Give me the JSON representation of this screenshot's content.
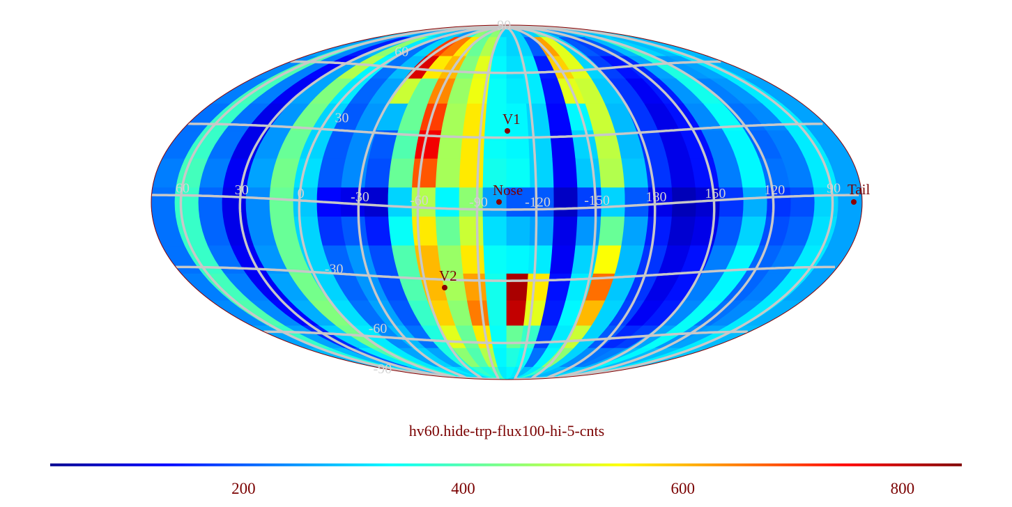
{
  "chart_data": {
    "type": "heatmap",
    "projection": "mollweide",
    "title": "hv60.hide-trp-flux100-hi-5-cnts",
    "colormap": "jet",
    "color_range": [
      24,
      854
    ],
    "colorbar": {
      "position": "bottom",
      "ticks": [
        200,
        400,
        600,
        800
      ],
      "tick_labels": [
        "200",
        "400",
        "600",
        "800"
      ]
    },
    "grid": true,
    "grid_color": "#c8c8c8",
    "longitude_labels": [
      "60",
      "30",
      "0",
      "-30",
      "-60",
      "-90",
      "-120",
      "-150",
      "180",
      "150",
      "120",
      "90"
    ],
    "longitude_values": [
      60,
      30,
      0,
      -30,
      -60,
      -90,
      -120,
      -150,
      180,
      150,
      120,
      90
    ],
    "latitude_labels": [
      "90",
      "60",
      "30",
      "-30",
      "-60",
      "-90"
    ],
    "latitude_values": [
      90,
      60,
      30,
      -30,
      -60,
      -90
    ],
    "markers": [
      {
        "label": "V1",
        "color": "#8b0000"
      },
      {
        "label": "Nose",
        "color": "#8b0000"
      },
      {
        "label": "V2",
        "color": "#8b0000"
      },
      {
        "label": "Tail",
        "color": "#8b0000"
      }
    ],
    "cell_lat_centers": [
      84,
      72,
      60,
      48,
      36,
      24,
      12,
      0,
      -12,
      -24,
      -36,
      -48,
      -60,
      -72,
      -84
    ],
    "cell_lon_centers": [
      -174,
      -162,
      -150,
      -138,
      -126,
      -114,
      -102,
      -90,
      -78,
      -66,
      -54,
      -42,
      -30,
      -18,
      -6,
      6,
      18,
      30,
      42,
      54,
      66,
      78,
      90,
      102,
      114,
      126,
      138,
      150,
      162,
      174
    ],
    "values": [
      [
        300,
        350,
        300,
        250,
        300,
        350,
        300,
        250,
        300,
        250,
        350,
        450,
        400,
        450,
        300,
        300,
        300,
        250,
        300,
        400,
        300,
        250,
        250,
        250,
        300,
        300,
        280,
        300,
        320,
        300
      ],
      [
        260,
        380,
        240,
        150,
        280,
        450,
        320,
        220,
        300,
        700,
        650,
        560,
        420,
        480,
        320,
        300,
        300,
        200,
        620,
        520,
        300,
        200,
        180,
        200,
        280,
        380,
        300,
        280,
        330,
        280
      ],
      [
        240,
        400,
        230,
        130,
        260,
        480,
        330,
        220,
        280,
        780,
        560,
        600,
        440,
        520,
        330,
        310,
        320,
        150,
        580,
        520,
        300,
        180,
        140,
        160,
        260,
        360,
        250,
        260,
        320,
        270
      ],
      [
        230,
        390,
        230,
        120,
        260,
        440,
        320,
        210,
        260,
        500,
        420,
        640,
        460,
        530,
        340,
        320,
        320,
        140,
        520,
        500,
        290,
        170,
        120,
        150,
        250,
        350,
        230,
        250,
        320,
        260
      ],
      [
        220,
        380,
        220,
        110,
        250,
        430,
        300,
        200,
        250,
        280,
        420,
        700,
        470,
        560,
        340,
        330,
        300,
        130,
        330,
        500,
        280,
        170,
        110,
        140,
        240,
        340,
        220,
        240,
        320,
        260
      ],
      [
        220,
        380,
        220,
        110,
        250,
        420,
        300,
        200,
        240,
        200,
        400,
        760,
        470,
        560,
        340,
        330,
        300,
        120,
        300,
        490,
        280,
        170,
        110,
        140,
        230,
        330,
        210,
        230,
        320,
        260
      ],
      [
        230,
        390,
        230,
        120,
        260,
        430,
        310,
        200,
        240,
        190,
        420,
        680,
        470,
        560,
        350,
        340,
        300,
        120,
        290,
        480,
        290,
        170,
        110,
        140,
        230,
        330,
        220,
        230,
        320,
        260
      ],
      [
        220,
        380,
        210,
        110,
        240,
        420,
        290,
        130,
        110,
        90,
        300,
        480,
        330,
        450,
        260,
        200,
        200,
        80,
        180,
        300,
        200,
        110,
        70,
        90,
        170,
        270,
        170,
        190,
        300,
        260
      ],
      [
        220,
        380,
        210,
        110,
        240,
        420,
        300,
        170,
        200,
        150,
        340,
        560,
        420,
        500,
        310,
        280,
        260,
        110,
        250,
        420,
        260,
        150,
        90,
        110,
        200,
        300,
        190,
        210,
        310,
        260
      ],
      [
        220,
        380,
        220,
        120,
        250,
        420,
        300,
        210,
        250,
        190,
        400,
        600,
        460,
        560,
        340,
        330,
        320,
        120,
        300,
        540,
        280,
        170,
        110,
        140,
        230,
        330,
        210,
        230,
        320,
        260
      ],
      [
        230,
        390,
        230,
        120,
        260,
        430,
        300,
        210,
        250,
        190,
        400,
        600,
        470,
        620,
        350,
        820,
        560,
        140,
        320,
        660,
        290,
        170,
        110,
        140,
        230,
        330,
        210,
        230,
        320,
        260
      ],
      [
        240,
        400,
        240,
        130,
        270,
        440,
        310,
        220,
        260,
        200,
        380,
        580,
        450,
        650,
        350,
        800,
        520,
        150,
        330,
        600,
        300,
        180,
        120,
        150,
        240,
        340,
        220,
        240,
        320,
        270
      ],
      [
        260,
        380,
        260,
        160,
        300,
        430,
        320,
        240,
        280,
        220,
        360,
        520,
        420,
        560,
        340,
        420,
        380,
        180,
        320,
        500,
        300,
        200,
        160,
        180,
        260,
        340,
        250,
        260,
        320,
        280
      ],
      [
        280,
        360,
        280,
        200,
        320,
        400,
        320,
        260,
        300,
        260,
        360,
        450,
        400,
        480,
        330,
        360,
        340,
        220,
        330,
        450,
        300,
        240,
        220,
        230,
        280,
        330,
        280,
        280,
        320,
        290
      ],
      [
        300,
        340,
        300,
        260,
        320,
        360,
        320,
        300,
        320,
        300,
        340,
        380,
        360,
        400,
        320,
        330,
        320,
        280,
        320,
        380,
        300,
        280,
        270,
        280,
        300,
        320,
        300,
        300,
        320,
        300
      ]
    ]
  }
}
